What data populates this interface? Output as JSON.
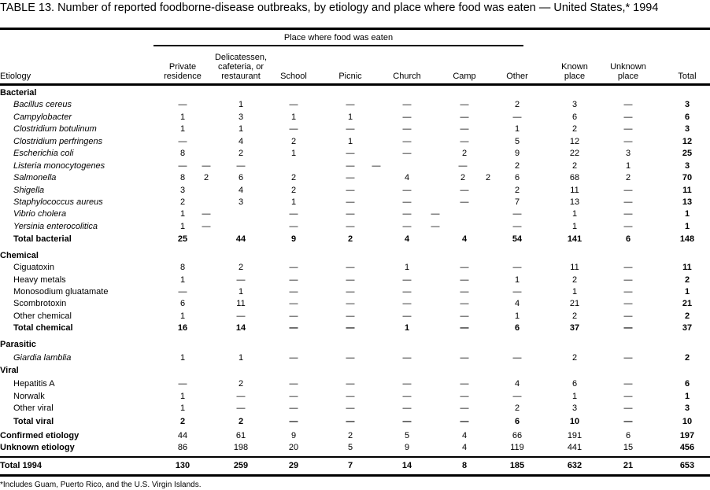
{
  "title": "TABLE 13. Number of reported foodborne-disease  outbreaks, by etiology and place where food was eaten — United States,* 1994",
  "header": {
    "group": "Place where food was eaten",
    "etiology": "Etiology",
    "columns": [
      [
        "Private",
        "residence"
      ],
      [
        "Delicatessen,",
        "cafeteria, or",
        "restaurant"
      ],
      [
        "School"
      ],
      [
        "Picnic"
      ],
      [
        "Church"
      ],
      [
        "Camp"
      ],
      [
        "Other"
      ],
      [
        "Known",
        "place"
      ],
      [
        "Unknown",
        "place"
      ],
      [
        "Total"
      ]
    ]
  },
  "rows": [
    {
      "type": "section",
      "label": "Bacterial"
    },
    {
      "type": "item",
      "italic": true,
      "label": "Bacillus cereus",
      "values": [
        "—",
        "1",
        "—",
        "—",
        "—",
        "—",
        "2",
        "3",
        "—",
        "3"
      ]
    },
    {
      "type": "item",
      "italic": true,
      "label": "Campylobacter",
      "values": [
        "1",
        "3",
        "1",
        "1",
        "—",
        "—",
        "—",
        "6",
        "—",
        "6"
      ]
    },
    {
      "type": "item",
      "italic": true,
      "label": "Clostridium botulinum",
      "values": [
        "1",
        "1",
        "—",
        "—",
        "—",
        "—",
        "1",
        "2",
        "—",
        "3"
      ]
    },
    {
      "type": "item",
      "italic": true,
      "label": "Clostridium perfringens",
      "values": [
        "—",
        "4",
        "2",
        "1",
        "—",
        "—",
        "5",
        "12",
        "—",
        "12"
      ]
    },
    {
      "type": "item",
      "italic": true,
      "label": "Escherichia coli",
      "values": [
        "8",
        "2",
        "1",
        "—",
        "—",
        "2",
        "9",
        "22",
        "3",
        "25"
      ]
    },
    {
      "type": "item",
      "italic": true,
      "label": "Listeria monocytogenes",
      "cells": [
        "—",
        "—",
        "—",
        null,
        "—",
        "—",
        null,
        null,
        "—",
        null,
        "2",
        "2",
        "1",
        "3"
      ]
    },
    {
      "type": "item",
      "italic": true,
      "label": "Salmonella",
      "cells": [
        "8",
        "2",
        "6",
        "2",
        "—",
        null,
        "4",
        null,
        "2",
        "2",
        "6",
        "68",
        "2",
        "70"
      ]
    },
    {
      "type": "item",
      "italic": true,
      "label": "Shigella",
      "values": [
        "3",
        "4",
        "2",
        "—",
        "—",
        "—",
        "2",
        "11",
        "—",
        "11"
      ]
    },
    {
      "type": "item",
      "italic": true,
      "label": "Staphylococcus aureus",
      "values": [
        "2",
        "3",
        "1",
        "—",
        "—",
        "—",
        "7",
        "13",
        "—",
        "13"
      ]
    },
    {
      "type": "item",
      "italic": true,
      "label": "Vibrio cholera",
      "cells": [
        "1",
        "—",
        null,
        "—",
        "—",
        null,
        "—",
        "—",
        null,
        null,
        "—",
        "1",
        "—",
        "1"
      ]
    },
    {
      "type": "item",
      "italic": true,
      "label": "Yersinia enterocolitica",
      "cells": [
        "1",
        "—",
        null,
        "—",
        "—",
        null,
        "—",
        "—",
        null,
        null,
        "—",
        "1",
        "—",
        "1"
      ]
    },
    {
      "type": "total",
      "label": "Total bacterial",
      "values": [
        "25",
        "44",
        "9",
        "2",
        "4",
        "4",
        "54",
        "141",
        "6",
        "148"
      ]
    },
    {
      "type": "section",
      "label": "Chemical"
    },
    {
      "type": "item",
      "label": "Ciguatoxin",
      "values": [
        "8",
        "2",
        "—",
        "—",
        "1",
        "—",
        "—",
        "11",
        "—",
        "11"
      ]
    },
    {
      "type": "item",
      "label": "Heavy metals",
      "values": [
        "1",
        "—",
        "—",
        "—",
        "—",
        "—",
        "1",
        "2",
        "—",
        "2"
      ]
    },
    {
      "type": "item",
      "label": "Monosodium gluatamate",
      "values": [
        "—",
        "1",
        "—",
        "—",
        "—",
        "—",
        "—",
        "1",
        "—",
        "1"
      ]
    },
    {
      "type": "item",
      "label": "Scombrotoxin",
      "values": [
        "6",
        "11",
        "—",
        "—",
        "—",
        "—",
        "4",
        "21",
        "—",
        "21"
      ]
    },
    {
      "type": "item",
      "label": "Other chemical",
      "values": [
        "1",
        "—",
        "—",
        "—",
        "—",
        "—",
        "1",
        "2",
        "—",
        "2"
      ]
    },
    {
      "type": "total",
      "label": "Total chemical",
      "values": [
        "16",
        "14",
        "—",
        "—",
        "1",
        "—",
        "6",
        "37",
        "—",
        "37"
      ]
    },
    {
      "type": "section",
      "label": "Parasitic"
    },
    {
      "type": "item",
      "italic": true,
      "label": "Giardia lamblia",
      "values": [
        "1",
        "1",
        "—",
        "—",
        "—",
        "—",
        "—",
        "2",
        "—",
        "2"
      ]
    },
    {
      "type": "section",
      "label": "Viral"
    },
    {
      "type": "item",
      "label": "Hepatitis A",
      "values": [
        "—",
        "2",
        "—",
        "—",
        "—",
        "—",
        "4",
        "6",
        "—",
        "6"
      ]
    },
    {
      "type": "item",
      "label": "Norwalk",
      "values": [
        "1",
        "—",
        "—",
        "—",
        "—",
        "—",
        "—",
        "1",
        "—",
        "1"
      ]
    },
    {
      "type": "item",
      "label": "Other viral",
      "values": [
        "1",
        "—",
        "—",
        "—",
        "—",
        "—",
        "2",
        "3",
        "—",
        "3"
      ]
    },
    {
      "type": "total",
      "label": "Total viral",
      "values": [
        "2",
        "2",
        "—",
        "—",
        "—",
        "—",
        "6",
        "10",
        "—",
        "10"
      ]
    },
    {
      "type": "summary",
      "label": "Confirmed etiology",
      "values": [
        "44",
        "61",
        "9",
        "2",
        "5",
        "4",
        "66",
        "191",
        "6",
        "197"
      ]
    },
    {
      "type": "summary",
      "label": "Unknown etiology",
      "values": [
        "86",
        "198",
        "20",
        "5",
        "9",
        "4",
        "119",
        "441",
        "15",
        "456"
      ]
    },
    {
      "type": "grand",
      "label": "Total 1994",
      "values": [
        "130",
        "259",
        "29",
        "7",
        "14",
        "8",
        "185",
        "632",
        "21",
        "653"
      ]
    }
  ],
  "footnote": "*Includes Guam, Puerto Rico, and the U.S. Virgin Islands."
}
